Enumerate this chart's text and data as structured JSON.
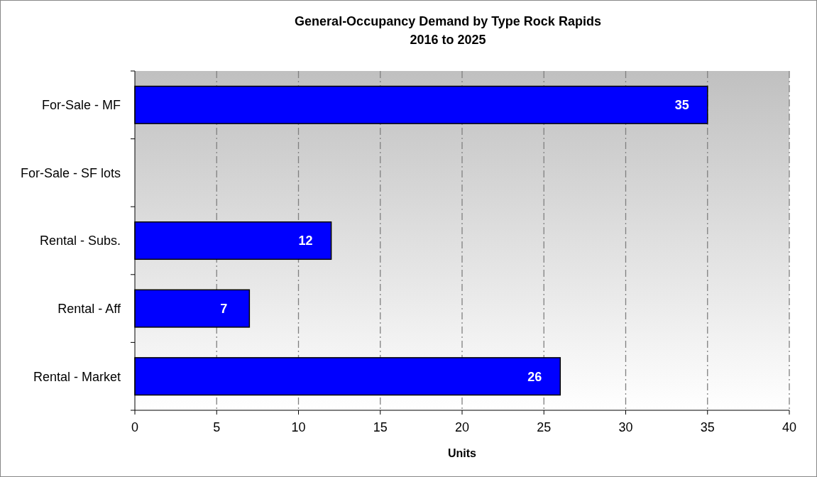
{
  "chart_data": {
    "type": "bar",
    "orientation": "horizontal",
    "title": "General-Occupancy  Demand by Type Rock Rapids",
    "subtitle": "2016 to 2025",
    "xlabel": "Units",
    "categories": [
      "For-Sale - MF",
      "For-Sale - SF lots",
      "Rental - Subs.",
      "Rental - Aff",
      "Rental - Market"
    ],
    "values": [
      35,
      0,
      12,
      7,
      26
    ],
    "value_labels": [
      "35",
      null,
      "12",
      "7",
      "26"
    ],
    "color": "#0000ff",
    "xlim": [
      0,
      40
    ],
    "xticks": [
      0,
      5,
      10,
      15,
      20,
      25,
      30,
      35,
      40
    ],
    "grid": "x"
  }
}
